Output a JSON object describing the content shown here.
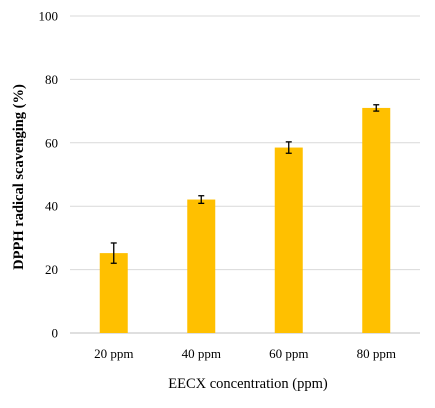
{
  "chart_data": {
    "type": "bar",
    "categories": [
      "20 ppm",
      "40 ppm",
      "60 ppm",
      "80 ppm"
    ],
    "values": [
      25.2,
      42.1,
      58.5,
      71.0
    ],
    "errors": [
      3.2,
      1.2,
      1.8,
      1.0
    ],
    "xlabel": "EECX concentration (ppm)",
    "ylabel": "DPPH radical scavenging (%)",
    "ylim": [
      0,
      100
    ],
    "yticks": [
      0,
      20,
      40,
      60,
      80,
      100
    ],
    "grid": true,
    "legend": "none",
    "bar_color": "#FFC000"
  }
}
